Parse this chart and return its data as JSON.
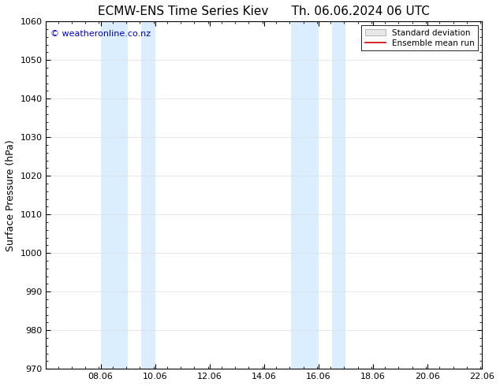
{
  "title_left": "ECMW-ENS Time Series Kiev",
  "title_right": "Th. 06.06.2024 06 UTC",
  "ylabel": "Surface Pressure (hPa)",
  "watermark": "© weatheronline.co.nz",
  "watermark_color": "#0000cc",
  "xlim": [
    6.06,
    22.06
  ],
  "ylim": [
    970,
    1060
  ],
  "yticks": [
    970,
    980,
    990,
    1000,
    1010,
    1020,
    1030,
    1040,
    1050,
    1060
  ],
  "xtick_labels": [
    "08.06",
    "10.06",
    "12.06",
    "14.06",
    "16.06",
    "18.06",
    "20.06",
    "22.06"
  ],
  "xtick_positions": [
    8.06,
    10.06,
    12.06,
    14.06,
    16.06,
    18.06,
    20.06,
    22.06
  ],
  "shaded_bands": [
    {
      "x_start": 8.06,
      "x_end": 9.06
    },
    {
      "x_start": 9.56,
      "x_end": 10.06
    },
    {
      "x_start": 15.06,
      "x_end": 16.06
    },
    {
      "x_start": 16.56,
      "x_end": 17.06
    }
  ],
  "band_color": "#daeeff",
  "legend_std_dev_color": "#cccccc",
  "legend_mean_run_color": "#cc0000",
  "title_fontsize": 11,
  "axis_fontsize": 9,
  "tick_fontsize": 8,
  "background_color": "#ffffff",
  "grid_color": "#dddddd"
}
